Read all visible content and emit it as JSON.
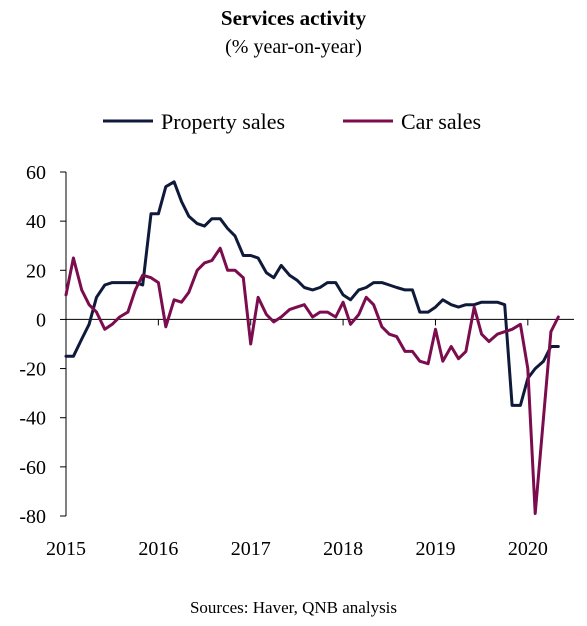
{
  "chart_data": {
    "type": "line",
    "title": "Services activity",
    "subtitle": "(% year-on-year)",
    "source": "Sources: Haver, QNB analysis",
    "legend_position": "top",
    "grid": false,
    "ylim": [
      -80,
      60
    ],
    "y_ticks": [
      "60",
      "40",
      "20",
      "0",
      "-20",
      "-40",
      "-60",
      "-80"
    ],
    "x_ticks": [
      "2015",
      "2016",
      "2017",
      "2018",
      "2019",
      "2020"
    ],
    "xlim": [
      2015.0,
      2020.5
    ],
    "series": [
      {
        "name": "Property sales",
        "color": "#0f1a3a",
        "x": [
          2015.0,
          2015.08,
          2015.17,
          2015.25,
          2015.33,
          2015.42,
          2015.5,
          2015.58,
          2015.67,
          2015.75,
          2015.83,
          2015.92,
          2016.0,
          2016.08,
          2016.17,
          2016.25,
          2016.33,
          2016.42,
          2016.5,
          2016.58,
          2016.67,
          2016.75,
          2016.83,
          2016.92,
          2017.0,
          2017.08,
          2017.17,
          2017.25,
          2017.33,
          2017.42,
          2017.5,
          2017.58,
          2017.67,
          2017.75,
          2017.83,
          2017.92,
          2018.0,
          2018.08,
          2018.17,
          2018.25,
          2018.33,
          2018.42,
          2018.5,
          2018.58,
          2018.67,
          2018.75,
          2018.83,
          2018.92,
          2019.0,
          2019.08,
          2019.17,
          2019.25,
          2019.33,
          2019.42,
          2019.5,
          2019.58,
          2019.67,
          2019.75,
          2019.83,
          2019.92,
          2020.0,
          2020.08,
          2020.17,
          2020.25,
          2020.33
        ],
        "values": [
          -15,
          -15,
          -8,
          -2,
          9,
          14,
          15,
          15,
          15,
          15,
          14,
          43,
          43,
          54,
          56,
          48,
          42,
          39,
          38,
          41,
          41,
          37,
          34,
          26,
          26,
          25,
          19,
          17,
          22,
          18,
          16,
          13,
          12,
          13,
          15,
          15,
          10,
          8,
          12,
          13,
          15,
          15,
          14,
          13,
          12,
          12,
          3,
          3,
          5,
          8,
          6,
          5,
          6,
          6,
          7,
          7,
          7,
          6,
          -35,
          -35,
          -24,
          -20,
          -17,
          -11,
          -11
        ]
      },
      {
        "name": "Car sales",
        "color": "#7b0d4e",
        "x": [
          2015.0,
          2015.08,
          2015.17,
          2015.25,
          2015.33,
          2015.42,
          2015.5,
          2015.58,
          2015.67,
          2015.75,
          2015.83,
          2015.92,
          2016.0,
          2016.08,
          2016.17,
          2016.25,
          2016.33,
          2016.42,
          2016.5,
          2016.58,
          2016.67,
          2016.75,
          2016.83,
          2016.92,
          2017.0,
          2017.08,
          2017.17,
          2017.25,
          2017.33,
          2017.42,
          2017.5,
          2017.58,
          2017.67,
          2017.75,
          2017.83,
          2017.92,
          2018.0,
          2018.08,
          2018.17,
          2018.25,
          2018.33,
          2018.42,
          2018.5,
          2018.58,
          2018.67,
          2018.75,
          2018.83,
          2018.92,
          2019.0,
          2019.08,
          2019.17,
          2019.25,
          2019.33,
          2019.42,
          2019.5,
          2019.58,
          2019.67,
          2019.75,
          2019.83,
          2019.92,
          2020.0,
          2020.08,
          2020.17,
          2020.25,
          2020.33
        ],
        "values": [
          10,
          25,
          12,
          6,
          3,
          -4,
          -2,
          1,
          3,
          12,
          18,
          17,
          15,
          -3,
          8,
          7,
          11,
          20,
          23,
          24,
          29,
          20,
          20,
          17,
          -10,
          9,
          2,
          -1,
          1,
          4,
          5,
          6,
          1,
          3,
          3,
          1,
          7,
          -2,
          2,
          9,
          6,
          -3,
          -6,
          -7,
          -13,
          -13,
          -17,
          -18,
          -4,
          -17,
          -11,
          -16,
          -13,
          5,
          -6,
          -9,
          -6,
          -5,
          -4,
          -2,
          -20,
          -79,
          -40,
          -5,
          1
        ]
      }
    ]
  }
}
